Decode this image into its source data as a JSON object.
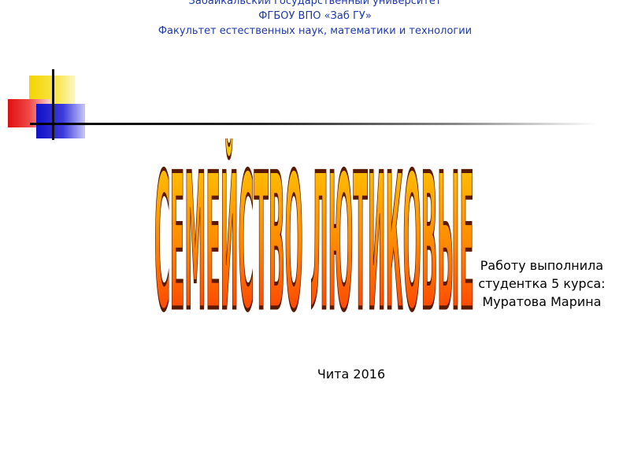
{
  "header": {
    "line1": "Забайкальский государственный университет",
    "line2": "ФГБОУ ВПО «Заб ГУ»",
    "line3": "Факультет естественных наук, математики и технологии"
  },
  "title": "СЕМЕЙСТВО ЛЮТИКОВЫЕ",
  "author": {
    "line1": "Работу выполнила",
    "line2": "студентка 5 курса:",
    "line3": "Муратова Марина"
  },
  "footer": {
    "city_year": "Чита 2016"
  },
  "colors": {
    "header_text": "#1f3aa8",
    "title_top": "#ffd400",
    "title_bottom": "#ff1e00",
    "title_outline": "#5a1a00"
  }
}
